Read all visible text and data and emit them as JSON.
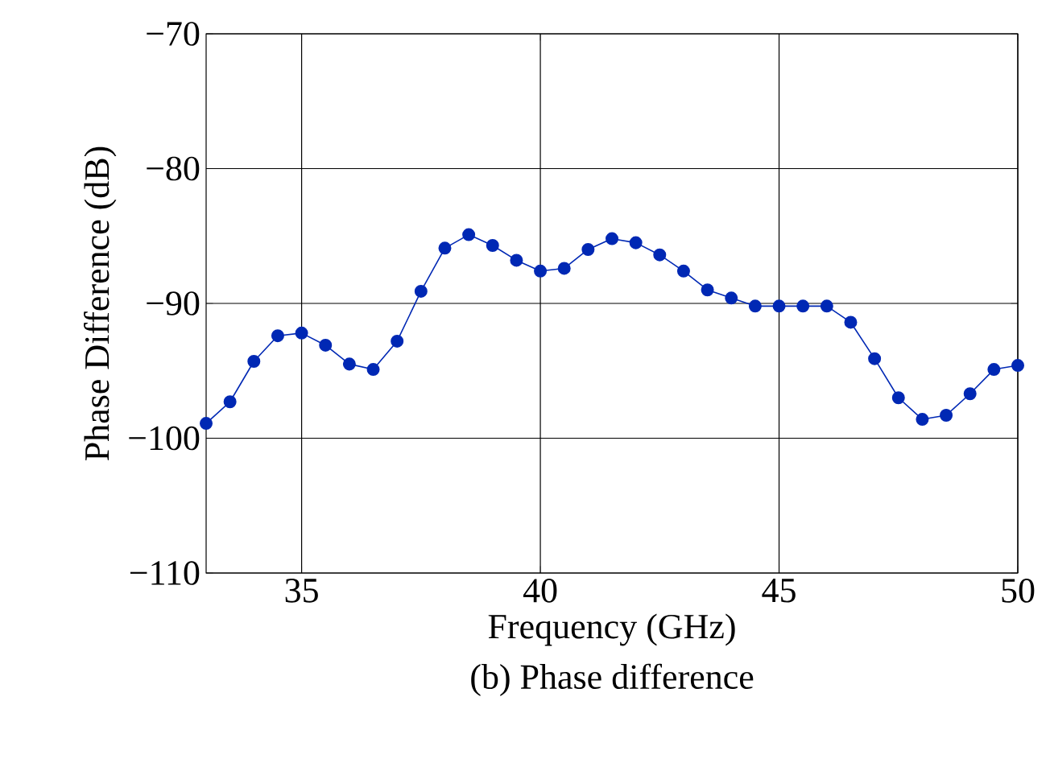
{
  "chart_data": {
    "type": "line",
    "xlabel": "Frequency (GHz)",
    "ylabel": "Phase Difference (dB)",
    "annotations": [
      "(b) Phase difference"
    ],
    "x": [
      33,
      33.5,
      34,
      34.5,
      35,
      35.5,
      36,
      36.5,
      37,
      37.5,
      38,
      38.5,
      39,
      39.5,
      40,
      40.5,
      41,
      41.5,
      42,
      42.5,
      43,
      43.5,
      44,
      44.5,
      45,
      45.5,
      46,
      46.5,
      47,
      47.5,
      48,
      48.5,
      49,
      49.5,
      50
    ],
    "series": [
      {
        "color": "#0028b4",
        "values": [
          -98.9,
          -97.3,
          -94.3,
          -92.4,
          -92.2,
          -93.1,
          -94.5,
          -94.9,
          -92.8,
          -89.1,
          -85.9,
          -84.9,
          -85.7,
          -86.8,
          -87.6,
          -87.4,
          -86.0,
          -85.2,
          -85.5,
          -86.4,
          -87.6,
          -89.0,
          -89.6,
          -90.2,
          -90.2,
          -90.2,
          -90.2,
          -91.4,
          -94.1,
          -97.0,
          -98.6,
          -98.3,
          -96.7,
          -94.9,
          -94.6
        ]
      }
    ],
    "xlim": [
      33,
      50
    ],
    "ylim": [
      -110,
      -70
    ],
    "xticks": [
      35,
      40,
      45,
      50
    ],
    "yticks": [
      {
        "value": -110,
        "label": "−110"
      },
      {
        "value": -100,
        "label": "−100"
      },
      {
        "value": -90,
        "label": "−90"
      },
      {
        "value": -80,
        "label": "−80"
      },
      {
        "value": -70,
        "label": "−70"
      }
    ],
    "grid": true,
    "marker": "circle",
    "line_style": "solid"
  }
}
